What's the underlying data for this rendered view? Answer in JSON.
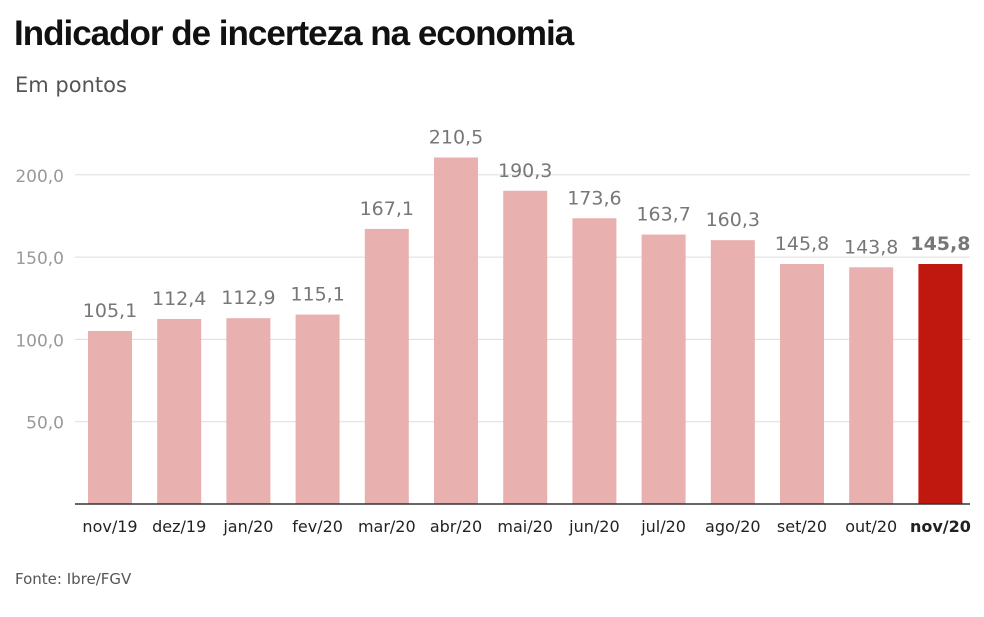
{
  "header": {
    "title": "Indicador de incerteza na economia",
    "subtitle": "Em pontos"
  },
  "footer": {
    "source": "Fonte: Ibre/FGV"
  },
  "colors": {
    "bar": "#e8b0ae",
    "highlight_bar": "#c0170e",
    "gridline": "#dddddd",
    "axis": "#333333",
    "tick_text": "#999999",
    "label_text": "#777777",
    "category_text": "#222222"
  },
  "chart_data": {
    "type": "bar",
    "title": "Indicador de incerteza na economia",
    "subtitle": "Em pontos",
    "categories": [
      "nov/19",
      "dez/19",
      "jan/20",
      "fev/20",
      "mar/20",
      "abr/20",
      "mai/20",
      "jun/20",
      "jul/20",
      "ago/20",
      "set/20",
      "out/20",
      "nov/20"
    ],
    "values": [
      105.1,
      112.4,
      112.9,
      115.1,
      167.1,
      210.5,
      190.3,
      173.6,
      163.7,
      160.3,
      145.8,
      143.8,
      145.8
    ],
    "value_labels": [
      "105,1",
      "112,4",
      "112,9",
      "115,1",
      "167,1",
      "210,5",
      "190,3",
      "173,6",
      "163,7",
      "160,3",
      "145,8",
      "143,8",
      "145,8"
    ],
    "highlight_index": 12,
    "ylim": [
      0,
      200
    ],
    "yticks": [
      50,
      100,
      150,
      200
    ],
    "ytick_labels": [
      "50,0",
      "100,0",
      "150,0",
      "200,0"
    ],
    "xlabel": "",
    "ylabel": "",
    "grid": true,
    "legend": false
  }
}
